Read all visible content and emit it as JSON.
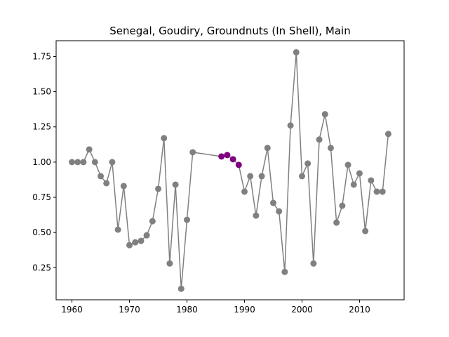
{
  "chart_data": {
    "type": "line",
    "title": "Senegal, Goudiry, Groundnuts (In Shell), Main",
    "xlabel": "",
    "ylabel": "",
    "xlim": [
      1957.25,
      2017.75
    ],
    "ylim": [
      0.022,
      1.862
    ],
    "grid": false,
    "x_ticks": [
      1960,
      1970,
      1980,
      1990,
      2000,
      2010
    ],
    "x_tick_labels": [
      "1960",
      "1970",
      "1980",
      "1990",
      "2000",
      "2010"
    ],
    "y_ticks": [
      0.25,
      0.5,
      0.75,
      1.0,
      1.25,
      1.5,
      1.75
    ],
    "y_tick_labels": [
      "0.25",
      "0.50",
      "0.75",
      "1.00",
      "1.25",
      "1.50",
      "1.75"
    ],
    "line_color": "#808080",
    "marker_color": "#808080",
    "highlight_color": "#800080",
    "series": [
      {
        "x": [
          1960,
          1961,
          1962,
          1963,
          1964,
          1965,
          1966,
          1967,
          1968,
          1969,
          1970,
          1971,
          1972,
          1973,
          1974,
          1975,
          1976,
          1977,
          1978,
          1979,
          1980,
          1981,
          1986,
          1987,
          1988,
          1989,
          1990,
          1991,
          1992,
          1993,
          1994,
          1995,
          1996,
          1997,
          1998,
          1999,
          2000,
          2001,
          2002,
          2003,
          2004,
          2005,
          2006,
          2007,
          2008,
          2009,
          2010,
          2011,
          2012,
          2013,
          2014,
          2015
        ],
        "y": [
          1.0,
          1.0,
          1.0,
          1.09,
          1.0,
          0.9,
          0.85,
          1.0,
          0.52,
          0.83,
          0.41,
          0.43,
          0.44,
          0.48,
          0.58,
          0.81,
          1.17,
          0.28,
          0.84,
          0.1,
          0.59,
          1.07,
          1.04,
          1.05,
          1.02,
          0.98,
          0.79,
          0.9,
          0.62,
          0.9,
          1.1,
          0.71,
          0.65,
          0.22,
          1.26,
          1.78,
          0.9,
          0.99,
          0.28,
          1.16,
          1.34,
          1.1,
          0.57,
          0.69,
          0.98,
          0.84,
          0.92,
          0.51,
          0.87,
          0.79,
          0.79,
          1.2
        ],
        "highlight_x": [
          1986,
          1987,
          1988,
          1989
        ]
      }
    ]
  }
}
